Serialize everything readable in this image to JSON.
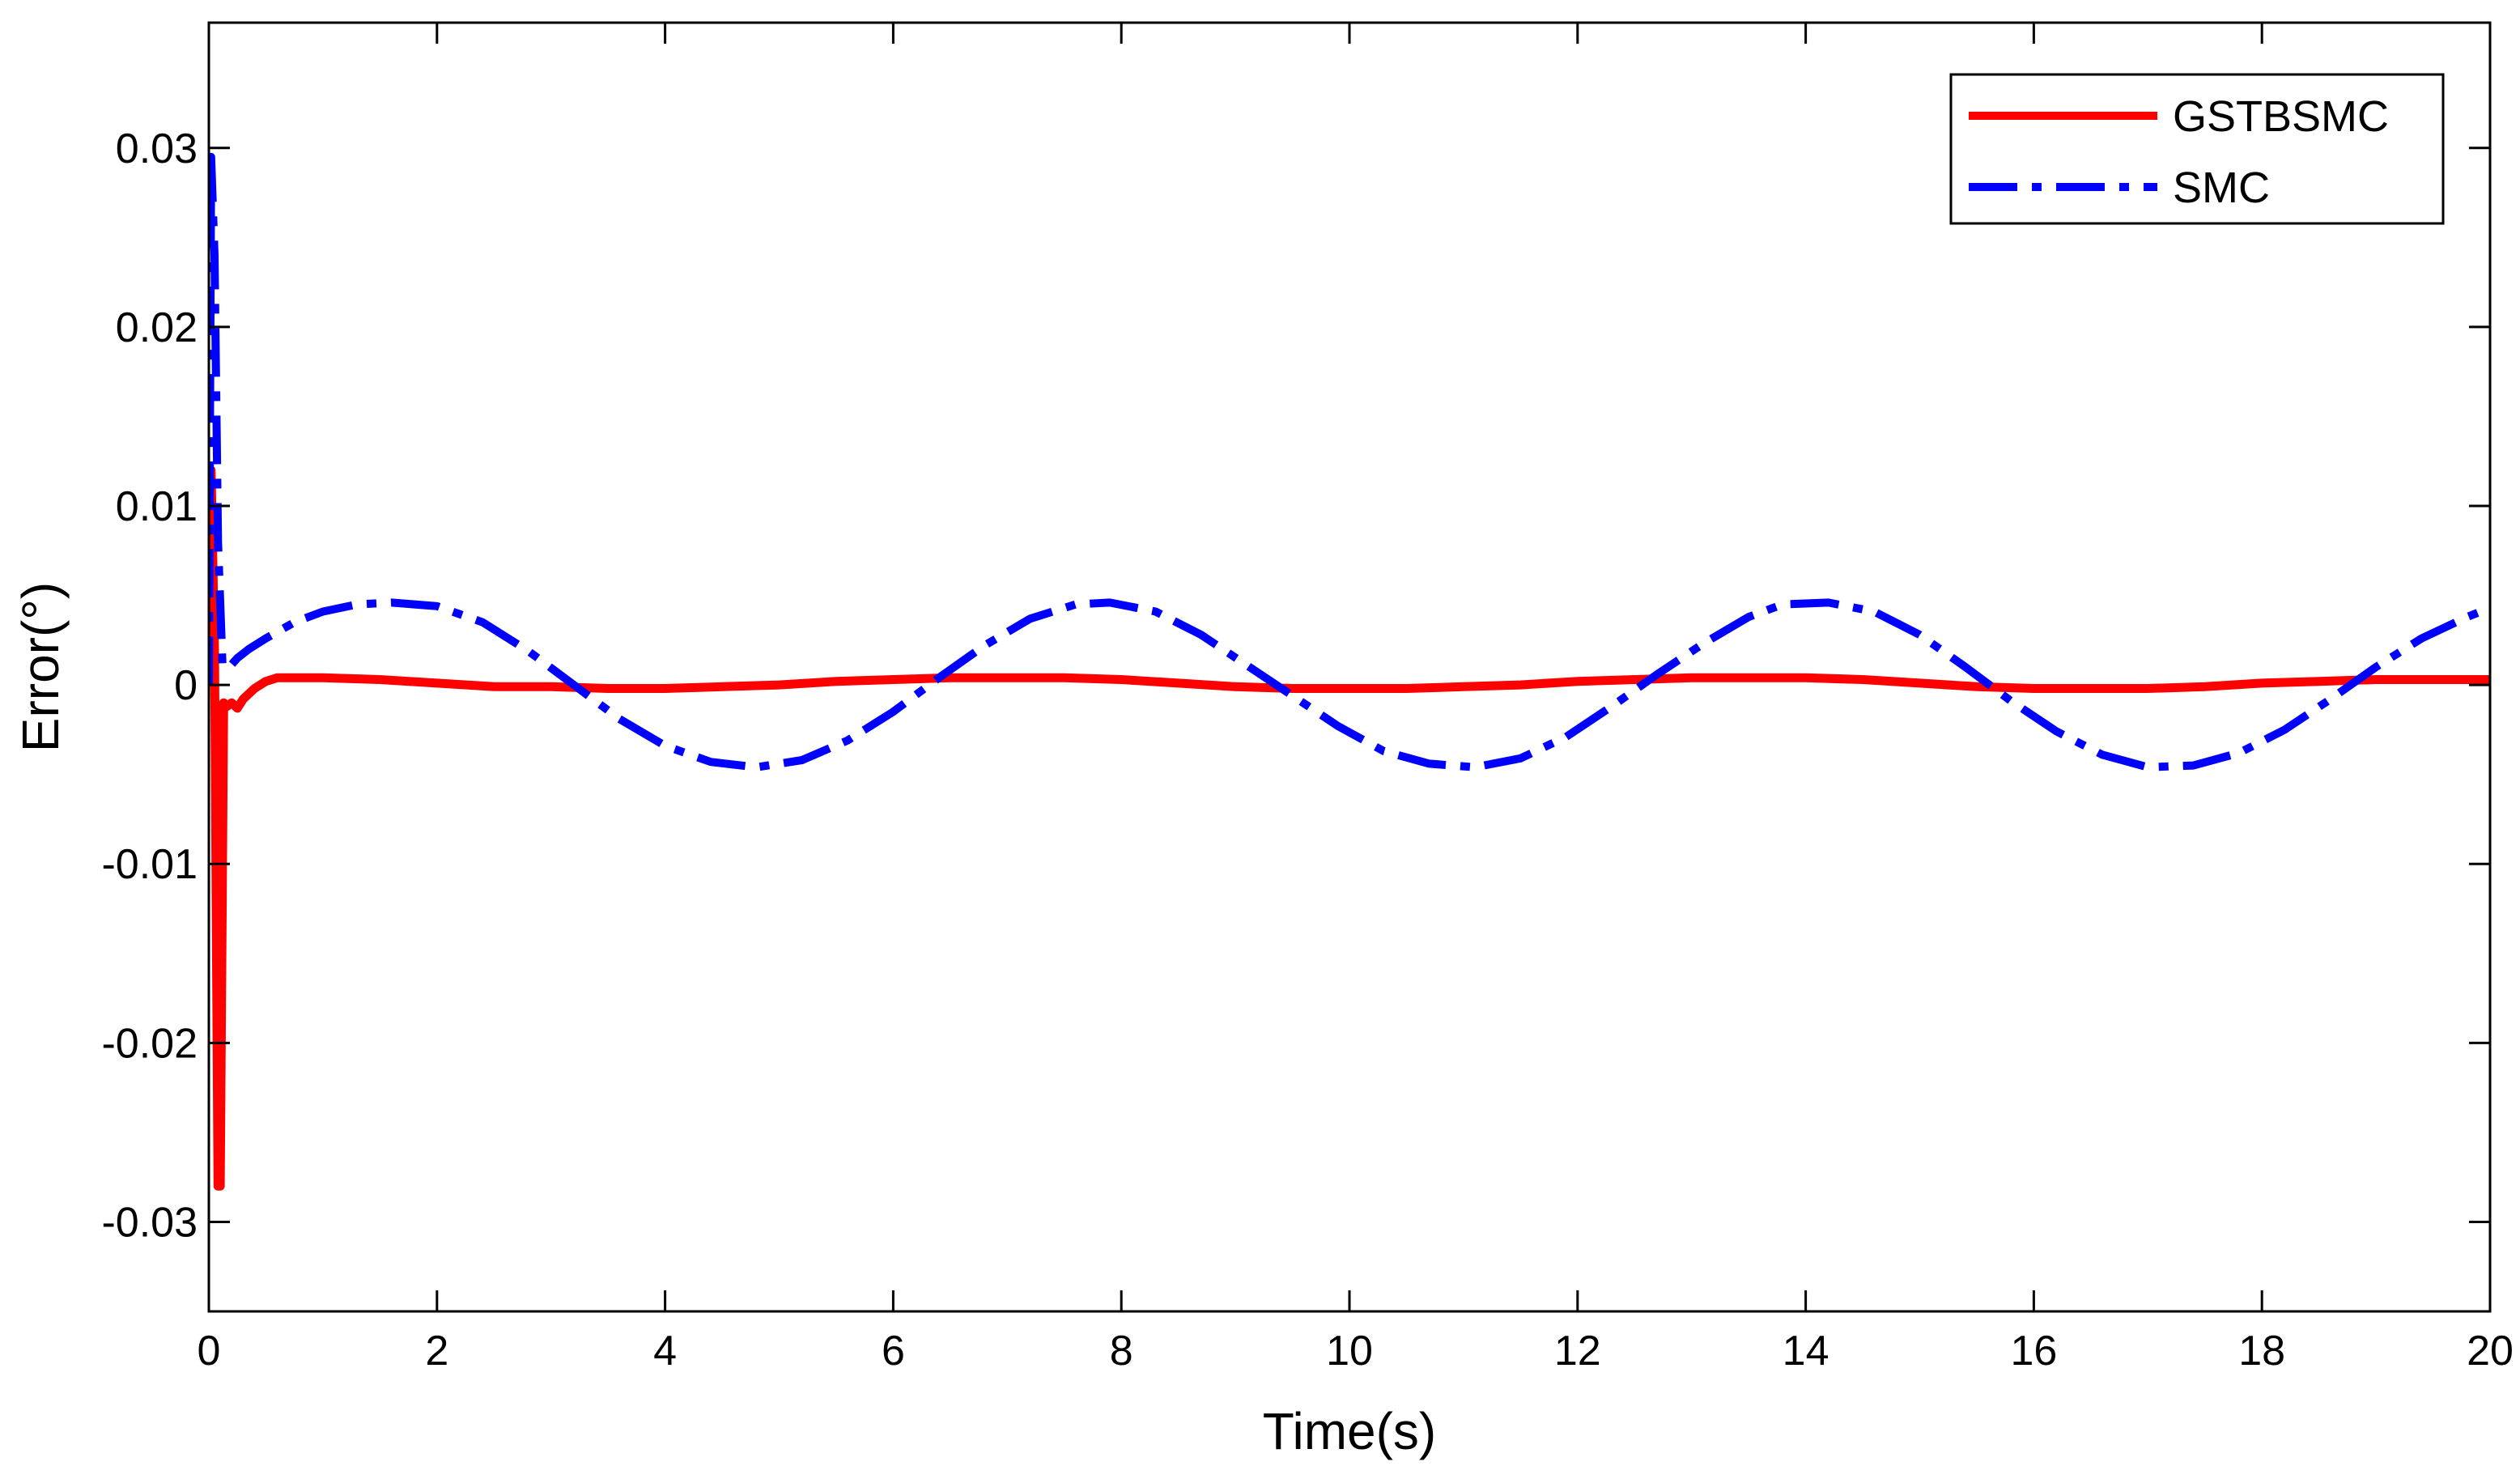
{
  "chart_data": {
    "type": "line",
    "title": "",
    "xlabel": "Time(s)",
    "ylabel": "Error(°)",
    "xlim": [
      0,
      20
    ],
    "ylim": [
      -0.035,
      0.037
    ],
    "grid": false,
    "legend_position": "top-right",
    "x_ticks": [
      0,
      2,
      4,
      6,
      8,
      10,
      12,
      14,
      16,
      18,
      20
    ],
    "x_tick_labels": [
      "0",
      "2",
      "4",
      "6",
      "8",
      "10",
      "12",
      "14",
      "16",
      "18",
      "20"
    ],
    "y_ticks": [
      -0.03,
      -0.02,
      -0.01,
      0,
      0.01,
      0.02,
      0.03
    ],
    "y_tick_labels": [
      "-0.03",
      "-0.02",
      "-0.01",
      "0",
      "0.01",
      "0.02",
      "0.03"
    ],
    "series": [
      {
        "name": "GSTBSMC",
        "color": "#ff0000",
        "style": "solid",
        "x": [
          0,
          0.02,
          0.05,
          0.08,
          0.1,
          0.13,
          0.16,
          0.2,
          0.25,
          0.3,
          0.4,
          0.5,
          0.6,
          0.8,
          1.0,
          1.5,
          2.0,
          2.5,
          3.0,
          3.5,
          4.0,
          4.5,
          5.0,
          5.5,
          6.0,
          6.5,
          7.0,
          7.5,
          8.0,
          8.5,
          9.0,
          9.5,
          10.0,
          10.5,
          11.0,
          11.5,
          12.0,
          12.5,
          13.0,
          13.5,
          14.0,
          14.5,
          15.0,
          15.5,
          16.0,
          16.5,
          17.0,
          17.5,
          18.0,
          18.5,
          19.0,
          19.5,
          20.0
        ],
        "y": [
          0.0,
          0.012,
          0.002,
          -0.028,
          -0.028,
          -0.001,
          -0.0012,
          -0.001,
          -0.0013,
          -0.0008,
          -0.0002,
          0.0002,
          0.0004,
          0.0004,
          0.0004,
          0.0003,
          0.0001,
          -0.0001,
          -0.0001,
          -0.0002,
          -0.0002,
          -0.0001,
          0.0,
          0.0002,
          0.0003,
          0.0004,
          0.0004,
          0.0004,
          0.0003,
          0.0001,
          -0.0001,
          -0.0002,
          -0.0002,
          -0.0002,
          -0.0001,
          0.0,
          0.0002,
          0.0003,
          0.0004,
          0.0004,
          0.0004,
          0.0003,
          0.0001,
          -0.0001,
          -0.0002,
          -0.0002,
          -0.0002,
          -0.0001,
          0.0001,
          0.0002,
          0.0003,
          0.0003,
          0.0003
        ]
      },
      {
        "name": "SMC",
        "color": "#0000ff",
        "style": "dash-dot",
        "x": [
          0,
          0.02,
          0.05,
          0.08,
          0.12,
          0.18,
          0.25,
          0.35,
          0.5,
          0.75,
          1.0,
          1.3,
          1.6,
          2.0,
          2.4,
          2.8,
          3.2,
          3.6,
          4.0,
          4.4,
          4.8,
          5.2,
          5.6,
          6.0,
          6.4,
          6.8,
          7.2,
          7.6,
          7.9,
          8.3,
          8.7,
          9.1,
          9.5,
          9.9,
          10.3,
          10.7,
          11.1,
          11.5,
          11.9,
          12.3,
          12.7,
          13.1,
          13.5,
          13.8,
          14.2,
          14.6,
          15.0,
          15.4,
          15.8,
          16.2,
          16.6,
          17.0,
          17.4,
          17.8,
          18.2,
          18.6,
          19.0,
          19.4,
          19.8,
          20.0
        ],
        "y": [
          0.0,
          0.0295,
          0.024,
          0.008,
          0.001,
          0.001,
          0.0015,
          0.002,
          0.0026,
          0.0035,
          0.0041,
          0.0045,
          0.0046,
          0.0044,
          0.0035,
          0.0019,
          0.0,
          -0.0019,
          -0.0034,
          -0.0043,
          -0.0046,
          -0.0042,
          -0.0031,
          -0.0015,
          0.0004,
          0.0022,
          0.0037,
          0.0045,
          0.0046,
          0.0041,
          0.0028,
          0.0011,
          -0.0006,
          -0.0023,
          -0.0037,
          -0.0044,
          -0.0046,
          -0.0041,
          -0.0029,
          -0.0012,
          0.0006,
          0.0023,
          0.0038,
          0.0045,
          0.0046,
          0.0041,
          0.0028,
          0.001,
          -0.0009,
          -0.0026,
          -0.0039,
          -0.0046,
          -0.0045,
          -0.0038,
          -0.0025,
          -0.0008,
          0.001,
          0.0026,
          0.0038,
          0.0043
        ]
      }
    ]
  }
}
